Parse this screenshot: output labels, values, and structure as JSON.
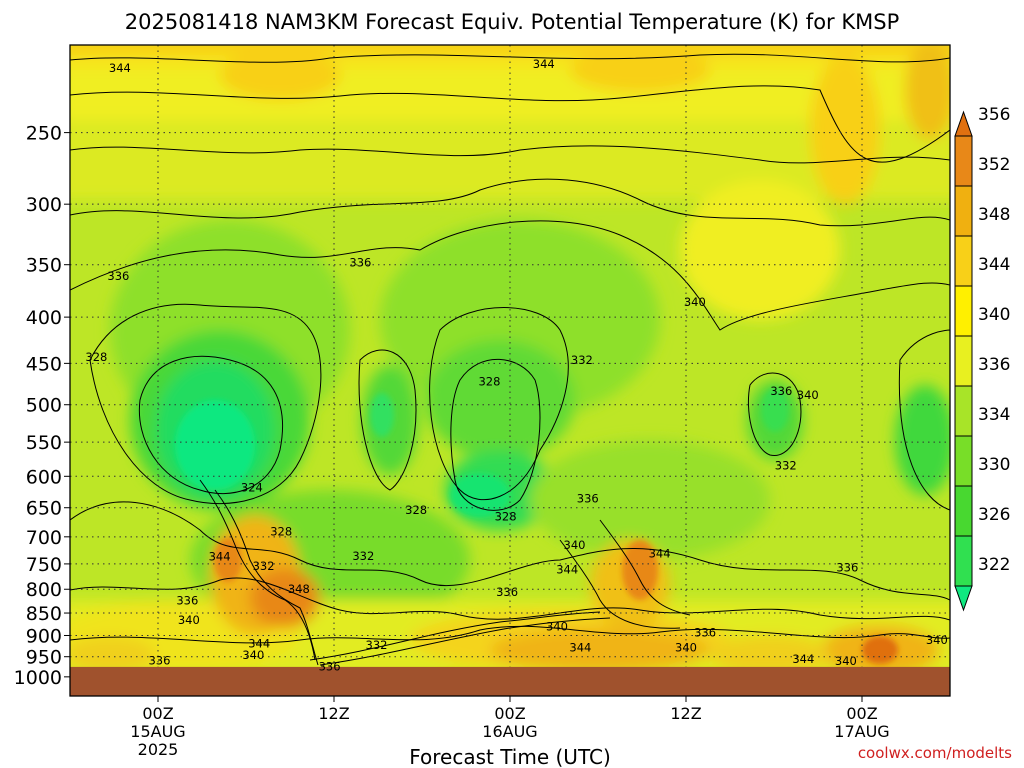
{
  "chart_data": {
    "type": "heatmap",
    "title": "2025081418 NAM3KM Forecast Equiv. Potential Temperature (K) for KMSP",
    "xlabel": "Forecast Time (UTC)",
    "ylabel": "",
    "credit": "coolwx.com/modelts",
    "y_axis": {
      "scale": "log",
      "range": [
        200,
        1050
      ],
      "ticks": [
        250,
        300,
        350,
        400,
        450,
        500,
        550,
        600,
        650,
        700,
        750,
        800,
        850,
        900,
        950,
        1000
      ],
      "tick_labels": [
        "250",
        "300",
        "350",
        "400",
        "450",
        "500",
        "550",
        "600",
        "650",
        "700",
        "750",
        "800",
        "850",
        "900",
        "950",
        "1000"
      ]
    },
    "x_axis": {
      "range_hours": [
        0,
        60
      ],
      "ticks": [
        {
          "hour": 6,
          "lines": [
            "00Z",
            "15AUG",
            "2025"
          ]
        },
        {
          "hour": 18,
          "lines": [
            "12Z"
          ]
        },
        {
          "hour": 30,
          "lines": [
            "00Z",
            "16AUG"
          ]
        },
        {
          "hour": 42,
          "lines": [
            "12Z"
          ]
        },
        {
          "hour": 54,
          "lines": [
            "00Z",
            "17AUG"
          ]
        }
      ]
    },
    "grid": true,
    "colorbar": {
      "placement": "right",
      "levels": [
        322,
        326,
        330,
        334,
        336,
        340,
        344,
        348,
        352,
        356
      ],
      "labels": [
        "322",
        "326",
        "330",
        "334",
        "336",
        "340",
        "344",
        "348",
        "352",
        "356"
      ],
      "colors": [
        "#10e880",
        "#30e050",
        "#48d830",
        "#78de28",
        "#a8e428",
        "#e8f020",
        "#fff000",
        "#f8d018",
        "#f0b010",
        "#e88818",
        "#e07010"
      ]
    },
    "ground": {
      "pressure_below": 975,
      "color": "#a0522d"
    },
    "contour_labels": [
      {
        "text": "344",
        "hour": 3.4,
        "p": 212
      },
      {
        "text": "344",
        "hour": 32.3,
        "p": 210
      },
      {
        "text": "336",
        "hour": 3.3,
        "p": 360
      },
      {
        "text": "336",
        "hour": 19.8,
        "p": 348
      },
      {
        "text": "340",
        "hour": 42.6,
        "p": 385
      },
      {
        "text": "328",
        "hour": 1.8,
        "p": 443
      },
      {
        "text": "328",
        "hour": 28.6,
        "p": 471
      },
      {
        "text": "332",
        "hour": 34.9,
        "p": 446
      },
      {
        "text": "336",
        "hour": 48.5,
        "p": 483
      },
      {
        "text": "340",
        "hour": 50.3,
        "p": 488
      },
      {
        "text": "332",
        "hour": 48.8,
        "p": 584
      },
      {
        "text": "324",
        "hour": 12.4,
        "p": 617
      },
      {
        "text": "336",
        "hour": 35.3,
        "p": 635
      },
      {
        "text": "328",
        "hour": 23.6,
        "p": 654
      },
      {
        "text": "328",
        "hour": 29.7,
        "p": 665
      },
      {
        "text": "328",
        "hour": 14.4,
        "p": 691
      },
      {
        "text": "340",
        "hour": 34.4,
        "p": 715
      },
      {
        "text": "344",
        "hour": 40.2,
        "p": 730
      },
      {
        "text": "344",
        "hour": 10.2,
        "p": 736
      },
      {
        "text": "332",
        "hour": 13.2,
        "p": 754
      },
      {
        "text": "332",
        "hour": 20.0,
        "p": 735
      },
      {
        "text": "344",
        "hour": 33.9,
        "p": 761
      },
      {
        "text": "336",
        "hour": 53.0,
        "p": 757
      },
      {
        "text": "348",
        "hour": 15.6,
        "p": 800
      },
      {
        "text": "336",
        "hour": 8.0,
        "p": 823
      },
      {
        "text": "336",
        "hour": 29.8,
        "p": 806
      },
      {
        "text": "340",
        "hour": 8.1,
        "p": 865
      },
      {
        "text": "340",
        "hour": 33.2,
        "p": 880
      },
      {
        "text": "344",
        "hour": 12.9,
        "p": 918
      },
      {
        "text": "332",
        "hour": 20.9,
        "p": 922
      },
      {
        "text": "344",
        "hour": 34.8,
        "p": 928
      },
      {
        "text": "336",
        "hour": 43.3,
        "p": 893
      },
      {
        "text": "340",
        "hour": 42.0,
        "p": 928
      },
      {
        "text": "340",
        "hour": 12.5,
        "p": 946
      },
      {
        "text": "340",
        "hour": 59.1,
        "p": 910
      },
      {
        "text": "336",
        "hour": 6.1,
        "p": 959
      },
      {
        "text": "336",
        "hour": 17.7,
        "p": 974
      },
      {
        "text": "344",
        "hour": 50.0,
        "p": 956
      },
      {
        "text": "340",
        "hour": 52.9,
        "p": 961
      }
    ]
  }
}
